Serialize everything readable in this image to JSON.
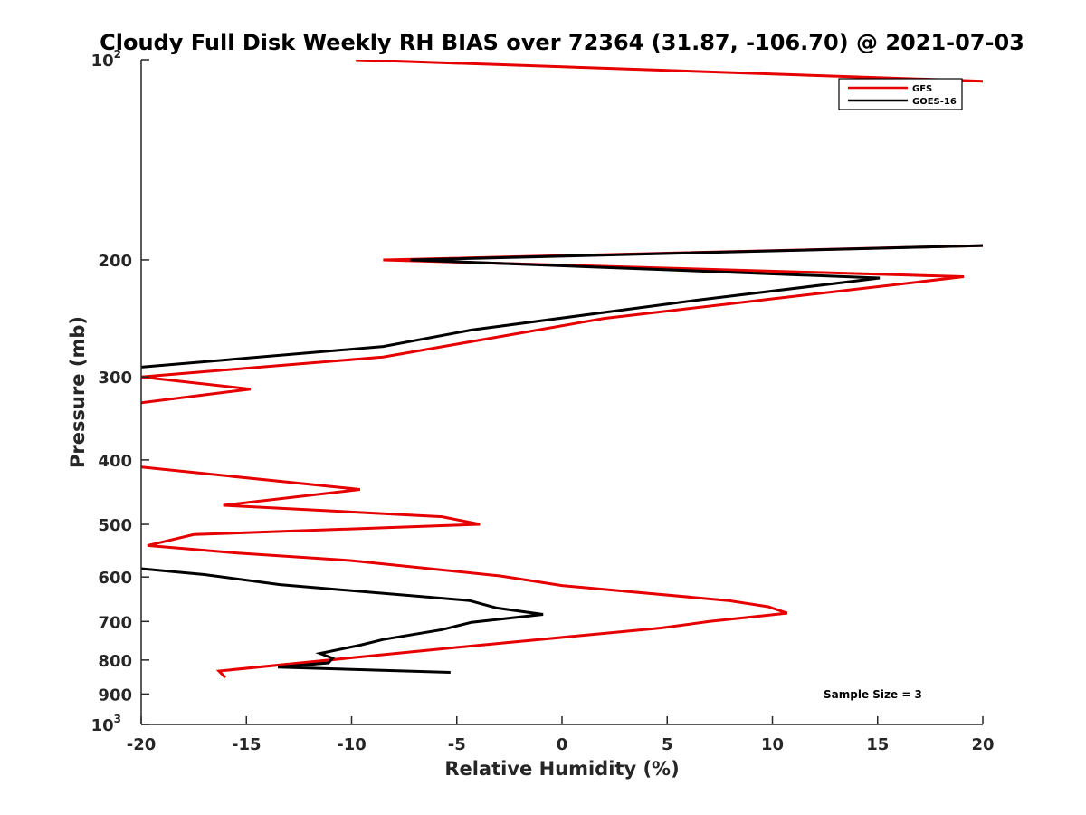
{
  "chart_data": {
    "type": "line",
    "title": "Cloudy Full Disk Weekly RH BIAS over 72364 (31.87, -106.70) @ 2021-07-03",
    "xlabel": "Relative Humidity (%)",
    "ylabel": "Pressure (mb)",
    "xlim": [
      -20,
      20
    ],
    "ylim": [
      100,
      1000
    ],
    "yscale": "log",
    "yreversed": true,
    "grid": false,
    "legend_position": "top-right",
    "x_ticks": [
      "-20",
      "-15",
      "-10",
      "-5",
      "0",
      "5",
      "10",
      "15",
      "20"
    ],
    "y_ticks": [
      {
        "base": "10",
        "exp": "2",
        "label": ""
      },
      {
        "label": "200"
      },
      {
        "label": "300"
      },
      {
        "label": "400"
      },
      {
        "label": "500"
      },
      {
        "label": "600"
      },
      {
        "label": "700"
      },
      {
        "label": "800"
      },
      {
        "label": "900"
      },
      {
        "base": "10",
        "exp": "3",
        "label": ""
      }
    ],
    "annotation": "Sample Size = 3",
    "series": [
      {
        "name": "GFS",
        "color": "#e60000",
        "segments": [
          [
            [
              -9.8,
              100
            ],
            [
              21,
              108
            ]
          ],
          [
            [
              21,
              190
            ],
            [
              -8.5,
              200
            ],
            [
              19.1,
              212
            ],
            [
              2,
              245
            ],
            [
              -8.5,
              280
            ],
            [
              -20,
              300
            ],
            [
              -14.8,
              313
            ],
            [
              -20,
              328
            ]
          ],
          [
            [
              -20,
              410
            ],
            [
              -9.6,
              443
            ],
            [
              -16.1,
              468
            ],
            [
              -5.7,
              487
            ],
            [
              -3.9,
              500
            ],
            [
              -17.5,
              518
            ],
            [
              -19.7,
              538
            ],
            [
              -15.5,
              552
            ],
            [
              -10,
              567
            ],
            [
              -2.9,
              598
            ],
            [
              0,
              618
            ],
            [
              7.9,
              651
            ],
            [
              9.8,
              665
            ],
            [
              10.7,
              680
            ],
            [
              7.0,
              700
            ],
            [
              4.7,
              716
            ],
            [
              -2.6,
              753
            ],
            [
              -5.8,
              770
            ],
            [
              -16.3,
              831
            ],
            [
              -16.0,
              850
            ]
          ]
        ]
      },
      {
        "name": "GOES-16",
        "color": "#000000",
        "segments": [
          [
            [
              21,
              190
            ],
            [
              -7.2,
              200
            ],
            [
              15.1,
              213
            ],
            [
              6.4,
              230
            ],
            [
              -4.3,
              255
            ],
            [
              -8.5,
              270
            ],
            [
              -20,
              290
            ]
          ],
          [
            [
              -20,
              583
            ],
            [
              -17,
              595
            ],
            [
              -13.4,
              616
            ],
            [
              -4.4,
              651
            ],
            [
              -3.1,
              668
            ],
            [
              -0.9,
              683
            ],
            [
              -4.3,
              702
            ],
            [
              -5.7,
              720
            ],
            [
              -8.5,
              745
            ],
            [
              -9.6,
              760
            ],
            [
              -11.5,
              782
            ],
            [
              -10.9,
              795
            ],
            [
              -11.1,
              808
            ],
            [
              -13.5,
              820
            ],
            [
              -5.3,
              835
            ]
          ]
        ]
      }
    ]
  }
}
